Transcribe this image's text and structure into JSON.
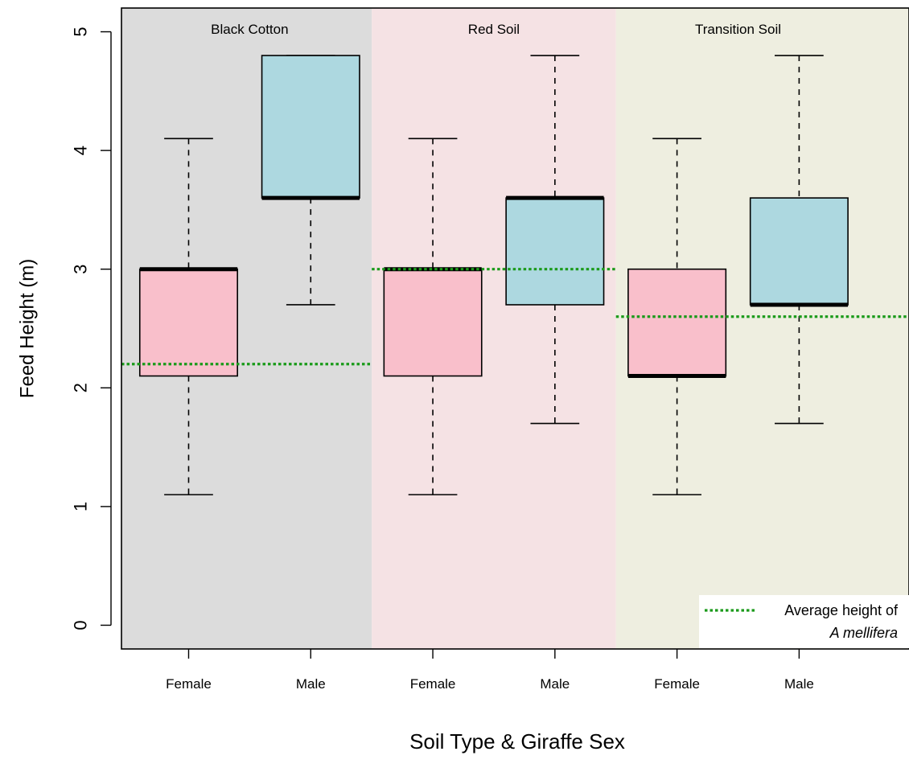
{
  "chart_data": {
    "type": "boxplot",
    "xlabel": "Soil Type & Giraffe Sex",
    "ylabel": "Feed Height (m)",
    "ylim": [
      -0.2,
      5.2
    ],
    "yticks": [
      0,
      1,
      2,
      3,
      4,
      5
    ],
    "grid": false,
    "legend_position": "bottom-right",
    "colors": {
      "female_box": "#F9BFCB",
      "male_box": "#ADD8E0",
      "black_cotton_bg": "#DCDCDC",
      "red_soil_bg": "#F5E2E4",
      "transition_soil_bg": "#EEEEE0",
      "mean_line": "#1A9A1A"
    },
    "groups": [
      {
        "name": "Black Cotton",
        "average_height": 2.2,
        "boxes": [
          {
            "category": "Female",
            "whisker_low": 1.1,
            "q1": 2.1,
            "median": 3.0,
            "q3": 3.0,
            "whisker_high": 4.1
          },
          {
            "category": "Male",
            "whisker_low": 2.7,
            "q1": 3.6,
            "median": 3.6,
            "q3": 4.8,
            "whisker_high": 4.8
          }
        ]
      },
      {
        "name": "Red Soil",
        "average_height": 3.0,
        "boxes": [
          {
            "category": "Female",
            "whisker_low": 1.1,
            "q1": 2.1,
            "median": 3.0,
            "q3": 3.0,
            "whisker_high": 4.1
          },
          {
            "category": "Male",
            "whisker_low": 1.7,
            "q1": 2.7,
            "median": 3.6,
            "q3": 3.6,
            "whisker_high": 4.8
          }
        ]
      },
      {
        "name": "Transition Soil",
        "average_height": 2.6,
        "boxes": [
          {
            "category": "Female",
            "whisker_low": 1.1,
            "q1": 2.1,
            "median": 2.1,
            "q3": 3.0,
            "whisker_high": 4.1
          },
          {
            "category": "Male",
            "whisker_low": 1.7,
            "q1": 2.7,
            "median": 2.7,
            "q3": 3.6,
            "whisker_high": 4.8
          }
        ]
      }
    ],
    "legend": {
      "line1": "Average height of",
      "line2": "A mellifera"
    }
  }
}
